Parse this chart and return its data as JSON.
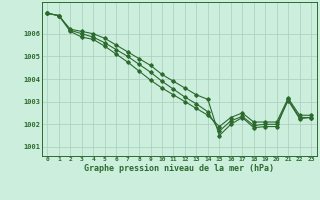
{
  "line1": [
    1006.9,
    1006.8,
    1006.2,
    1006.1,
    1006.0,
    1005.8,
    1005.5,
    1005.2,
    1004.9,
    1004.6,
    1004.2,
    1003.9,
    1003.6,
    1003.3,
    1003.1,
    1001.5,
    1002.0,
    1002.3,
    1001.85,
    1001.9,
    1001.9,
    1003.1,
    1002.3,
    1002.3
  ],
  "line2": [
    1006.9,
    1006.8,
    1006.15,
    1006.0,
    1005.85,
    1005.6,
    1005.3,
    1005.0,
    1004.65,
    1004.3,
    1003.9,
    1003.55,
    1003.2,
    1002.9,
    1002.55,
    1001.7,
    1002.15,
    1002.35,
    1001.95,
    1002.0,
    1002.0,
    1003.05,
    1002.25,
    1002.3
  ],
  "line3": [
    1006.9,
    1006.8,
    1006.1,
    1005.85,
    1005.75,
    1005.45,
    1005.1,
    1004.75,
    1004.35,
    1003.95,
    1003.6,
    1003.3,
    1003.0,
    1002.7,
    1002.4,
    1001.9,
    1002.3,
    1002.5,
    1002.1,
    1002.1,
    1002.1,
    1003.15,
    1002.4,
    1002.4
  ],
  "x": [
    0,
    1,
    2,
    3,
    4,
    5,
    6,
    7,
    8,
    9,
    10,
    11,
    12,
    13,
    14,
    15,
    16,
    17,
    18,
    19,
    20,
    21,
    22,
    23
  ],
  "line_color": "#2d6a2d",
  "bg_color": "#cceedd",
  "grid_color": "#aaccbb",
  "ylabel_ticks": [
    1001,
    1002,
    1003,
    1004,
    1005,
    1006
  ],
  "xlabel": "Graphe pression niveau de la mer (hPa)",
  "ylim": [
    1000.6,
    1007.4
  ],
  "xlim": [
    -0.5,
    23.5
  ]
}
